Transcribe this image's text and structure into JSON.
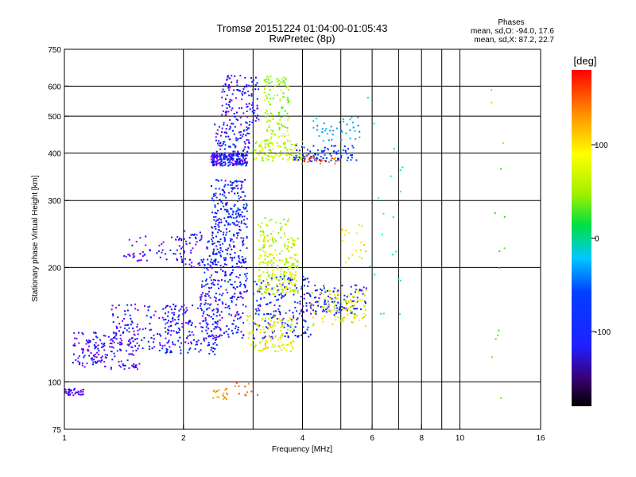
{
  "chart_data": {
    "type": "scatter",
    "title": "Tromsø 20151224 01:04:00-01:05:43",
    "subtitle": "RwPretec (8p)",
    "xlabel": "Frequency [MHz]",
    "ylabel": "Stationary phase Virtual Height [km]",
    "x_scale": "log",
    "y_scale": "log",
    "xlim": [
      1,
      16
    ],
    "ylim": [
      75,
      750
    ],
    "x_ticks": [
      1,
      2,
      4,
      6,
      8,
      10,
      16
    ],
    "x_tick_labels": [
      "1",
      "2",
      "4",
      "6",
      "8",
      "10",
      "16"
    ],
    "x_minor_ticks": [
      3,
      5,
      7,
      9
    ],
    "y_ticks": [
      75,
      100,
      200,
      300,
      400,
      500,
      600,
      750
    ],
    "y_tick_labels": [
      "75",
      "100",
      "200",
      "300",
      "400",
      "500",
      "600",
      "750"
    ],
    "grid": true,
    "info_box": {
      "heading": "Phases",
      "line1": "mean, sd,O: -94.0, 17.6",
      "line2": "mean, sd,X:  87.2, 22.7"
    },
    "colorbar": {
      "label": "[deg]",
      "range": [
        -180,
        180
      ],
      "ticks": [
        100,
        0,
        -100
      ],
      "tick_labels": [
        "100",
        "0",
        "-100"
      ]
    },
    "clusters": [
      {
        "freq": [
          1.0,
          1.12
        ],
        "height": [
          92,
          96
        ],
        "phase": -120,
        "count": 40
      },
      {
        "freq": [
          1.05,
          1.55
        ],
        "height": [
          108,
          135
        ],
        "phase": -115,
        "count": 160
      },
      {
        "freq": [
          1.3,
          2.0
        ],
        "height": [
          120,
          160
        ],
        "phase": -110,
        "count": 140
      },
      {
        "freq": [
          1.4,
          1.6
        ],
        "height": [
          212,
          218
        ],
        "phase": -120,
        "count": 12
      },
      {
        "freq": [
          1.45,
          2.1
        ],
        "height": [
          205,
          245
        ],
        "phase": -115,
        "count": 40
      },
      {
        "freq": [
          1.8,
          2.45
        ],
        "height": [
          118,
          160
        ],
        "phase": -108,
        "count": 140
      },
      {
        "freq": [
          1.9,
          2.4
        ],
        "height": [
          200,
          250
        ],
        "phase": -110,
        "count": 60
      },
      {
        "freq": [
          2.2,
          2.9
        ],
        "height": [
          130,
          210
        ],
        "phase": -105,
        "count": 230
      },
      {
        "freq": [
          2.35,
          2.9
        ],
        "height": [
          200,
          340
        ],
        "phase": -100,
        "count": 280
      },
      {
        "freq": [
          2.35,
          2.9
        ],
        "height": [
          370,
          400
        ],
        "phase": -110,
        "count": 200
      },
      {
        "freq": [
          2.4,
          2.95
        ],
        "height": [
          400,
          480
        ],
        "phase": -105,
        "count": 90
      },
      {
        "freq": [
          2.5,
          3.1
        ],
        "height": [
          480,
          640
        ],
        "phase": -110,
        "count": 120
      },
      {
        "freq": [
          2.35,
          2.6
        ],
        "height": [
          90,
          96
        ],
        "phase": 120,
        "count": 20
      },
      {
        "freq": [
          2.7,
          3.1
        ],
        "height": [
          92,
          100
        ],
        "phase": 140,
        "count": 12
      },
      {
        "freq": [
          3.0,
          4.2
        ],
        "height": [
          130,
          190
        ],
        "phase": -100,
        "count": 180
      },
      {
        "freq": [
          2.9,
          3.8
        ],
        "height": [
          120,
          150
        ],
        "phase": 90,
        "count": 120
      },
      {
        "freq": [
          3.1,
          3.9
        ],
        "height": [
          170,
          240
        ],
        "phase": 80,
        "count": 220
      },
      {
        "freq": [
          3.0,
          3.7
        ],
        "height": [
          240,
          270
        ],
        "phase": 70,
        "count": 30
      },
      {
        "freq": [
          3.2,
          3.7
        ],
        "height": [
          420,
          640
        ],
        "phase": 70,
        "count": 120
      },
      {
        "freq": [
          3.0,
          4.0
        ],
        "height": [
          380,
          430
        ],
        "phase": 80,
        "count": 100
      },
      {
        "freq": [
          3.8,
          5.5
        ],
        "height": [
          380,
          420
        ],
        "phase": -90,
        "count": 90
      },
      {
        "freq": [
          3.9,
          5.0
        ],
        "height": [
          375,
          395
        ],
        "phase": 150,
        "count": 25
      },
      {
        "freq": [
          4.2,
          5.6
        ],
        "height": [
          430,
          500
        ],
        "phase": -40,
        "count": 40
      },
      {
        "freq": [
          4.0,
          5.8
        ],
        "height": [
          150,
          180
        ],
        "phase": -105,
        "count": 120
      },
      {
        "freq": [
          4.2,
          5.8
        ],
        "height": [
          140,
          175
        ],
        "phase": 90,
        "count": 100
      },
      {
        "freq": [
          5.0,
          5.8
        ],
        "height": [
          200,
          260
        ],
        "phase": 90,
        "count": 20
      },
      {
        "freq": [
          5.8,
          7.2
        ],
        "height": [
          140,
          560
        ],
        "phase": 0,
        "count": 20
      },
      {
        "freq": [
          12.0,
          13.0
        ],
        "height": [
          90,
          600
        ],
        "phase": 60,
        "count": 14
      }
    ]
  }
}
